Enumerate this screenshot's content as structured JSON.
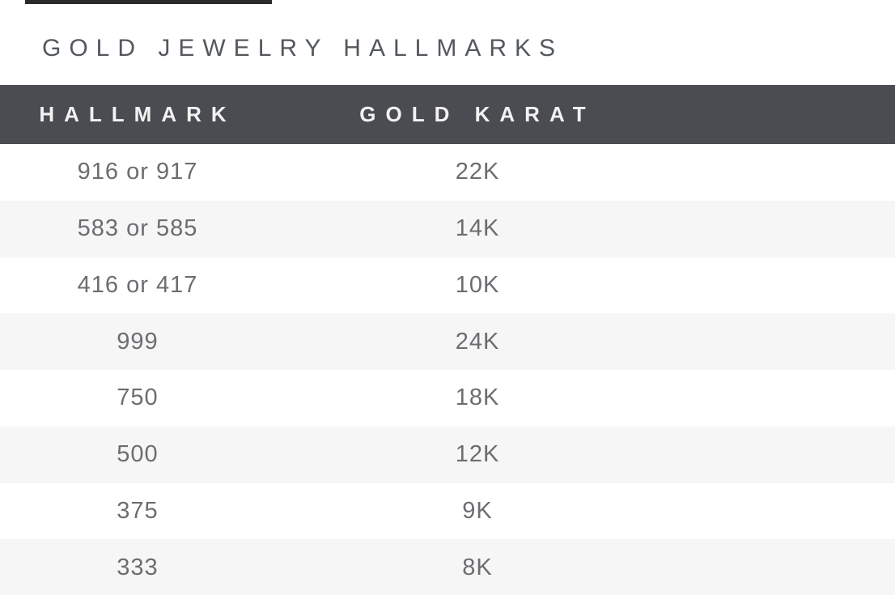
{
  "title": "GOLD JEWELRY HALLMARKS",
  "table": {
    "columns": [
      {
        "label": "HALLMARK"
      },
      {
        "label": "GOLD KARAT"
      }
    ],
    "rows": [
      {
        "hallmark": "916 or 917",
        "karat": "22K"
      },
      {
        "hallmark": "583 or 585",
        "karat": "14K"
      },
      {
        "hallmark": "416 or 417",
        "karat": "10K"
      },
      {
        "hallmark": "999",
        "karat": "24K"
      },
      {
        "hallmark": "750",
        "karat": "18K"
      },
      {
        "hallmark": "500",
        "karat": "12K"
      },
      {
        "hallmark": "375",
        "karat": "9K"
      },
      {
        "hallmark": "333",
        "karat": "8K"
      }
    ]
  },
  "colors": {
    "header_bg": "#4a4c51",
    "header_text": "#f2f2f2",
    "title_text": "#54585f",
    "row_text": "#6b6d70",
    "row_alt_bg": "#f6f6f7",
    "top_line": "#2b2b2b"
  }
}
